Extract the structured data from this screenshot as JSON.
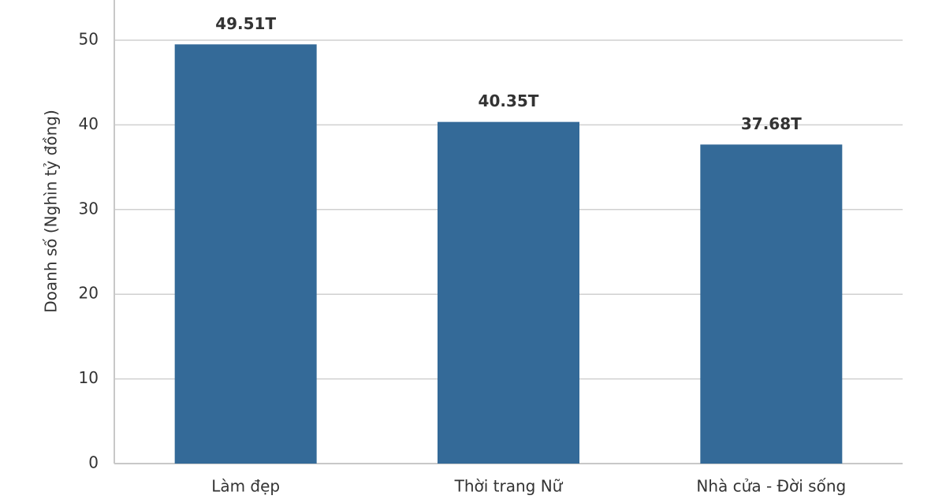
{
  "chart_data": {
    "type": "bar",
    "y_label": "Doanh số (Nghìn tỷ đồng)",
    "categories": [
      "Làm đẹp",
      "Thời trang Nữ",
      "Nhà cửa - Đời sống"
    ],
    "values": [
      49.51,
      40.35,
      37.68
    ],
    "value_labels": [
      "49.51T",
      "40.35T",
      "37.68T"
    ],
    "color": "#346a98",
    "ylim": [
      0,
      54.75
    ],
    "yticks": [
      0,
      10,
      20,
      30,
      40,
      50
    ],
    "grid": true
  }
}
